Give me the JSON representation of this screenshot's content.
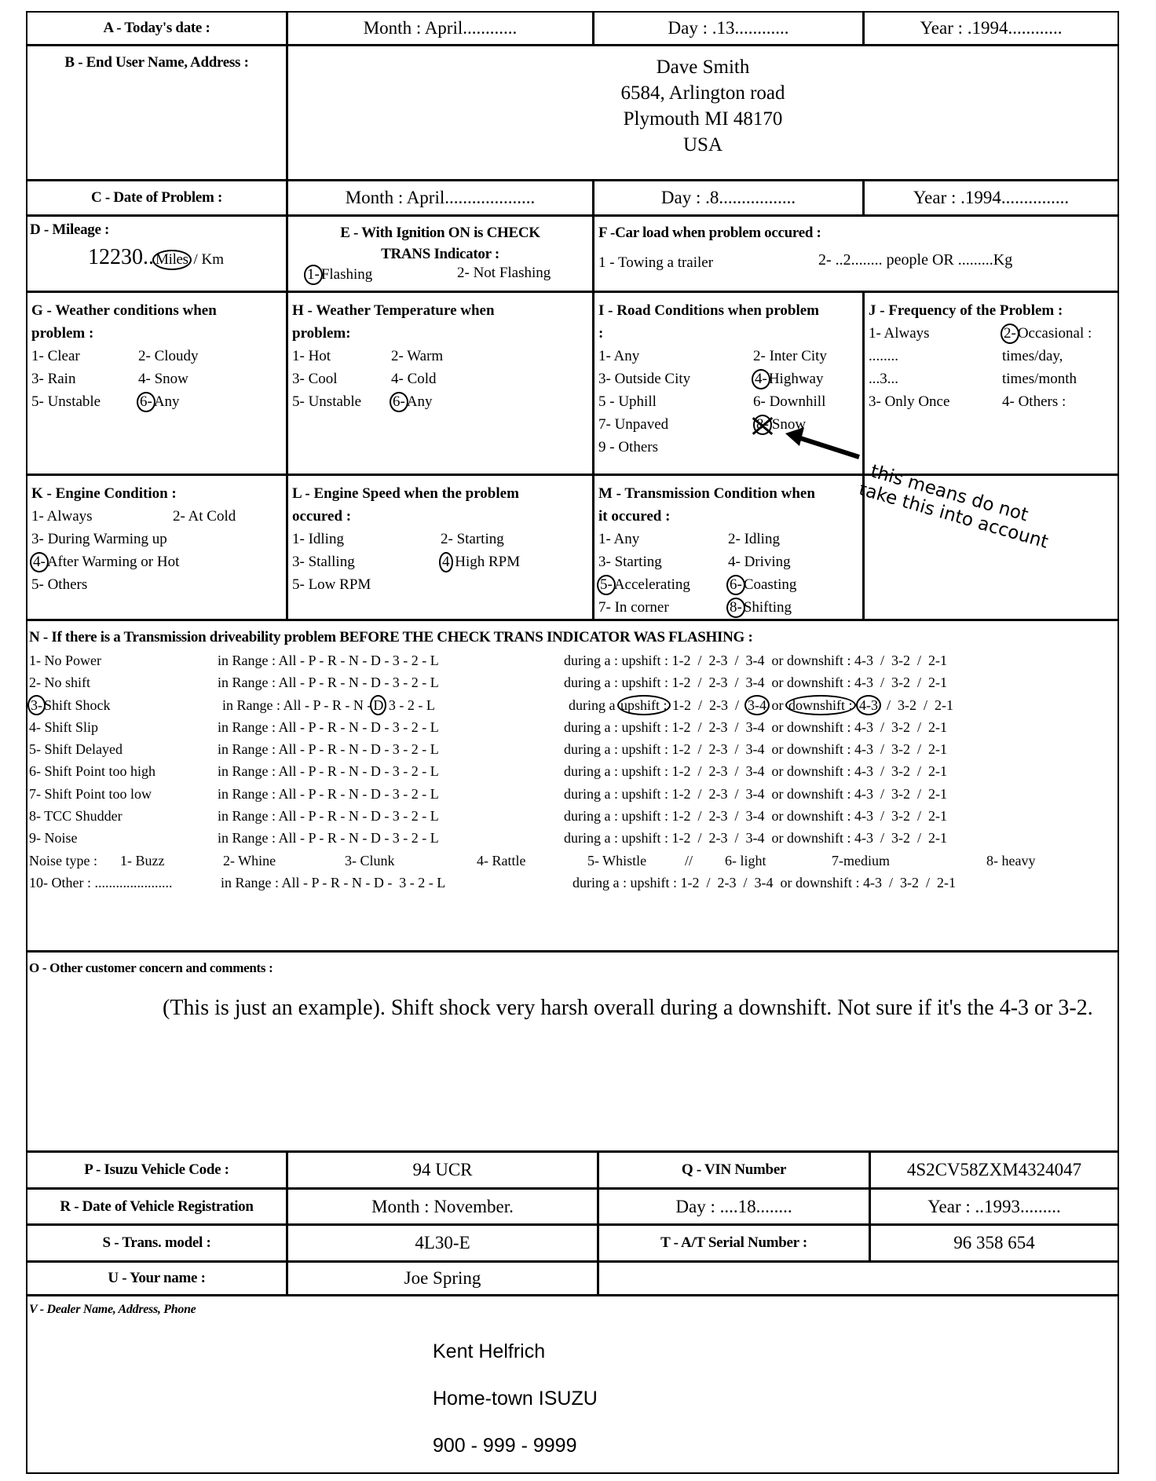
{
  "a": {
    "label": "A - Today's date :",
    "month": "Month : April............",
    "day": "Day : .13............",
    "year": "Year : .1994............"
  },
  "b": {
    "label": "B - End User Name, Address :",
    "lines": [
      "Dave Smith",
      "6584, Arlington road",
      "Plymouth MI 48170",
      "USA"
    ]
  },
  "c": {
    "label": "C - Date of Problem :",
    "month": "Month : April....................",
    "day": "Day : .8.................",
    "year": "Year : .1994..............."
  },
  "d": {
    "label": "D - Mileage :",
    "value": "12230..",
    "unit_circled": "Miles",
    "unit_rest": " / Km"
  },
  "e": {
    "title1": "E - With Ignition ON is CHECK",
    "title2": "TRANS Indicator :",
    "opt1_mark": "1-",
    "opt1_text": "Flashing",
    "opt2": "2- Not Flashing"
  },
  "f": {
    "title": "F -Car load when problem occured :",
    "opt1": "1 - Towing a trailer",
    "opt2": "2- ..2........   people  OR  .........Kg"
  },
  "sections": {
    "g": {
      "title": [
        "G - Weather conditions when",
        "problem :"
      ],
      "lines": [
        [
          {
            "text": "1- Clear"
          },
          {
            "text": "2- Cloudy"
          }
        ],
        [
          {
            "text": "3- Rain"
          },
          {
            "text": "4- Snow"
          }
        ],
        [
          {
            "text": "5- Unstable"
          },
          {
            "mark": "6-",
            "text": "Any",
            "circled": true
          }
        ]
      ]
    },
    "h": {
      "title": [
        "H - Weather Temperature when",
        "problem:"
      ],
      "lines": [
        [
          {
            "text": "1- Hot"
          },
          {
            "text": "2- Warm"
          }
        ],
        [
          {
            "text": "3- Cool"
          },
          {
            "text": "4- Cold"
          }
        ],
        [
          {
            "text": "5- Unstable"
          },
          {
            "mark": "6-",
            "text": "Any",
            "circled": true
          }
        ]
      ]
    },
    "i": {
      "title": [
        "I - Road Conditions when problem",
        ":"
      ],
      "lines": [
        [
          {
            "text": "1- Any"
          },
          {
            "text": "2- Inter City"
          }
        ],
        [
          {
            "text": "3- Outside City"
          },
          {
            "mark": "4-",
            "text": "Highway",
            "circled": true
          }
        ],
        [
          {
            "text": "5 - Uphill"
          },
          {
            "text": "6- Downhill"
          }
        ],
        [
          {
            "text": "7- Unpaved"
          },
          {
            "mark": "8-",
            "text": "Snow",
            "crossed": true
          }
        ],
        [
          {
            "text": "9 - Others"
          }
        ]
      ]
    },
    "j": {
      "title": [
        "J - Frequency of the Problem :"
      ],
      "lines": [
        [
          {
            "text": "1- Always"
          },
          {
            "mark": "2-",
            "text": "Occasional :",
            "circled": true
          }
        ],
        [
          {
            "text": "........"
          },
          {
            "text": "times/day,"
          }
        ],
        [
          {
            "text": "...3..."
          },
          {
            "text": "times/month"
          }
        ],
        [
          {
            "text": "3- Only Once"
          },
          {
            "text": "4- Others :"
          }
        ]
      ]
    },
    "k": {
      "title": [
        "K - Engine Condition :"
      ],
      "lines": [
        [
          {
            "text": "1- Always"
          },
          {
            "text": "2- At Cold"
          }
        ],
        [
          {
            "text": "3- During Warming up"
          }
        ],
        [
          {
            "mark": "4-",
            "text": "After Warming or Hot",
            "circled": true
          }
        ],
        [
          {
            "text": "5- Others"
          }
        ]
      ]
    },
    "l": {
      "title": [
        "L - Engine Speed  when the problem",
        "occured :"
      ],
      "lines": [
        [
          {
            "text": "1- Idling"
          },
          {
            "text": "2- Starting"
          }
        ],
        [
          {
            "text": "3- Stalling"
          },
          {
            "mark": "4",
            "text": " High RPM",
            "circled": true
          }
        ],
        [
          {
            "text": "5- Low RPM"
          }
        ]
      ]
    },
    "m": {
      "title": [
        "M - Transmission Condition when",
        "it occured :"
      ],
      "lines": [
        [
          {
            "text": "1- Any"
          },
          {
            "text": "2- Idling"
          }
        ],
        [
          {
            "text": "3- Starting"
          },
          {
            "text": "4- Driving"
          }
        ],
        [
          {
            "mark": "5-",
            "text": "Accelerating",
            "circled": true
          },
          {
            "mark": "6-",
            "text": "Coasting",
            "circled": true
          }
        ],
        [
          {
            "text": "7- In corner"
          },
          {
            "mark": "8-",
            "text": "Shifting",
            "circled": true
          }
        ]
      ]
    }
  },
  "annotation": {
    "line1": "this means do not",
    "line2": "take this into account"
  },
  "n": {
    "title": "N - If there is a  Transmission driveability problem  BEFORE THE CHECK TRANS INDICATOR WAS  FLASHING  :",
    "rows": [
      {
        "label": [
          {
            "text": "1- No Power"
          }
        ],
        "range": [
          {
            "text": "in Range : All - P - R - N - D - 3 - 2 - L"
          }
        ],
        "during": [
          {
            "text": "during a : upshift : 1-2  /  2-3  /  3-4  or downshift : 4-3  /  3-2  /  2-1"
          }
        ]
      },
      {
        "label": [
          {
            "text": "2- No shift"
          }
        ],
        "range": [
          {
            "text": "in Range : All - P - R - N - D - 3 - 2 - L"
          }
        ],
        "during": [
          {
            "text": "during a : upshift : 1-2  /  2-3  /  3-4  or downshift : 4-3  /  3-2  /  2-1"
          }
        ]
      },
      {
        "label": [
          {
            "text": "3-",
            "c": true
          },
          {
            "text": "Shift Shock"
          }
        ],
        "range": [
          {
            "text": "in Range : All - P - R - N -"
          },
          {
            "text": "D",
            "c": true
          },
          {
            "text": " 3 - 2 - L"
          }
        ],
        "during": [
          {
            "text": "during a "
          },
          {
            "text": "upshift :",
            "c": true
          },
          {
            "text": " 1-2  /  2-3  /  "
          },
          {
            "text": "3-4",
            "c": true
          },
          {
            "text": " or "
          },
          {
            "text": "downshift :",
            "c": true
          },
          {
            "text": " "
          },
          {
            "text": "4-3",
            "c": true
          },
          {
            "text": "  /  3-2  /  2-1"
          }
        ]
      },
      {
        "label": [
          {
            "text": "4- Shift Slip"
          }
        ],
        "range": [
          {
            "text": "in Range : All - P - R - N - D - 3 - 2 - L"
          }
        ],
        "during": [
          {
            "text": "during a : upshift : 1-2  /  2-3  /  3-4  or downshift : 4-3  /  3-2  /  2-1"
          }
        ]
      },
      {
        "label": [
          {
            "text": "5- Shift Delayed"
          }
        ],
        "range": [
          {
            "text": "in Range : All - P - R - N - D - 3 - 2 - L"
          }
        ],
        "during": [
          {
            "text": "during a : upshift : 1-2  /  2-3  /  3-4  or downshift : 4-3  /  3-2  /  2-1"
          }
        ]
      },
      {
        "label": [
          {
            "text": "6- Shift Point too high"
          }
        ],
        "range": [
          {
            "text": "in Range : All - P - R - N - D - 3 - 2 - L"
          }
        ],
        "during": [
          {
            "text": "during a : upshift : 1-2  /  2-3  /  3-4  or downshift : 4-3  /  3-2  /  2-1"
          }
        ]
      },
      {
        "label": [
          {
            "text": "7- Shift Point too low"
          }
        ],
        "range": [
          {
            "text": "in Range : All - P - R - N - D - 3 - 2 - L"
          }
        ],
        "during": [
          {
            "text": "during a : upshift : 1-2  /  2-3  /  3-4  or downshift : 4-3  /  3-2  /  2-1"
          }
        ]
      },
      {
        "label": [
          {
            "text": "8- TCC Shudder"
          }
        ],
        "range": [
          {
            "text": "in Range : All - P - R - N - D - 3 - 2 - L"
          }
        ],
        "during": [
          {
            "text": "during a : upshift : 1-2  /  2-3  /  3-4  or downshift : 4-3  /  3-2  /  2-1"
          }
        ]
      },
      {
        "label": [
          {
            "text": "9- Noise"
          }
        ],
        "range": [
          {
            "text": "in Range : All - P - R - N - D - 3 - 2 - L"
          }
        ],
        "during": [
          {
            "text": "during a : upshift : 1-2  /  2-3  /  3-4  or downshift : 4-3  /  3-2  /  2-1"
          }
        ]
      }
    ],
    "noise_type": {
      "label": "Noise type :",
      "items": [
        "1- Buzz",
        "2- Whine",
        "3- Clunk",
        "4- Rattle",
        "5- Whistle",
        "//",
        "6- light",
        "7-medium",
        "8- heavy"
      ]
    },
    "other": {
      "label": "10- Other : ......................",
      "range": "in Range : All - P - R - N - D -  3 - 2 - L",
      "during": "during a : upshift : 1-2  /  2-3  /  3-4  or downshift : 4-3  /  3-2  /  2-1"
    }
  },
  "o": {
    "label": "O -   Other customer concern and comments :",
    "comment": "(This is just an example). Shift shock  very harsh overall during a downshift. Not sure if it's the 4-3 or 3-2."
  },
  "p": {
    "label": "P - Isuzu Vehicle Code :",
    "value": "94 UCR",
    "q_label": "Q - VIN Number",
    "q_value": "4S2CV58ZXM4324047"
  },
  "r": {
    "label": "R - Date of Vehicle Registration",
    "month": "Month :  November.",
    "day": "Day : ....18........",
    "year": "Year : ..1993........."
  },
  "s": {
    "label": "S - Trans. model :",
    "value": "4L30-E",
    "t_label": "T - A/T Serial Number :",
    "t_value": "96 358 654"
  },
  "u": {
    "label": "U - Your name :",
    "value": "Joe Spring"
  },
  "v": {
    "label": "V -    Dealer Name, Address, Phone",
    "lines": [
      "Kent Helfrich",
      "Home-town ISUZU",
      "900 - 999 - 9999"
    ]
  }
}
